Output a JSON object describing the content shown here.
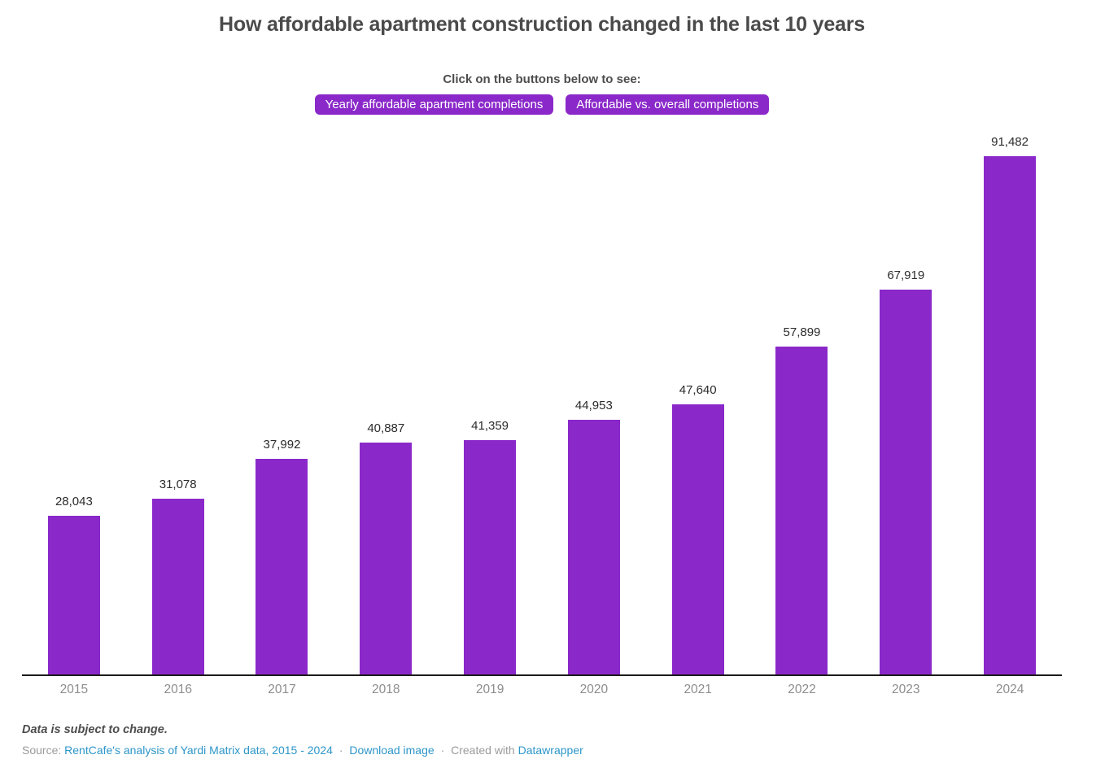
{
  "title": "How affordable apartment construction changed in the last 10 years",
  "subtitle": "Click on the buttons below to see:",
  "buttons": [
    {
      "label": "Yearly affordable apartment completions"
    },
    {
      "label": "Affordable vs. overall completions"
    }
  ],
  "colors": {
    "accent_purple": "#8a28c9",
    "link_blue": "#2d96c9",
    "bar_purple": "#8a28c9"
  },
  "chart_data": {
    "type": "bar",
    "title": "How affordable apartment construction changed in the last 10 years",
    "categories": [
      "2015",
      "2016",
      "2017",
      "2018",
      "2019",
      "2020",
      "2021",
      "2022",
      "2023",
      "2024"
    ],
    "values": [
      28043,
      31078,
      37992,
      40887,
      41359,
      44953,
      47640,
      57899,
      67919,
      91482
    ],
    "value_labels": [
      "28,043",
      "31,078",
      "37,992",
      "40,887",
      "41,359",
      "44,953",
      "47,640",
      "57,899",
      "67,919",
      "91,482"
    ],
    "xlabel": "",
    "ylabel": "",
    "ylim": [
      0,
      91482
    ],
    "grid": false,
    "legend": false,
    "bar_color": "#8a28c9",
    "data_labels": true
  },
  "footer": {
    "note": "Data is subject to change.",
    "source_prefix": "Source:",
    "source_link": "RentCafe's analysis of Yardi Matrix data, 2015 - 2024",
    "separator": "·",
    "download_link": "Download image",
    "created_with": "Created with",
    "datawrapper_link": "Datawrapper"
  }
}
